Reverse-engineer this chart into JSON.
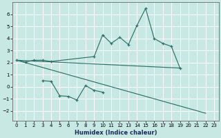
{
  "background_color": "#c8e8e4",
  "grid_color": "#ffffff",
  "line_color": "#2d7068",
  "x_label": "Humidex (Indice chaleur)",
  "ylim": [
    -2.8,
    7.0
  ],
  "xlim": [
    -0.5,
    23.5
  ],
  "yticks": [
    -2,
    -1,
    0,
    1,
    2,
    3,
    4,
    5,
    6
  ],
  "xticks": [
    0,
    1,
    2,
    3,
    4,
    5,
    6,
    7,
    8,
    9,
    10,
    11,
    12,
    13,
    14,
    15,
    16,
    17,
    18,
    19,
    20,
    21,
    22,
    23
  ],
  "upper_zigzag": {
    "x": [
      0,
      1,
      2,
      3,
      4,
      9,
      10,
      11,
      12,
      13,
      14,
      15,
      16,
      17,
      18,
      19
    ],
    "y": [
      2.2,
      2.05,
      2.2,
      2.2,
      2.1,
      2.5,
      4.3,
      3.6,
      4.1,
      3.5,
      5.1,
      6.5,
      4.0,
      3.6,
      3.35,
      1.55
    ]
  },
  "lower_zigzag": {
    "x": [
      3,
      4,
      5,
      6,
      7,
      8,
      9,
      10
    ],
    "y": [
      0.5,
      0.45,
      -0.75,
      -0.8,
      -1.1,
      0.1,
      -0.3,
      -0.45
    ]
  },
  "trend_upper": {
    "x": [
      0,
      19
    ],
    "y": [
      2.2,
      1.55
    ]
  },
  "trend_lower": {
    "x": [
      0,
      22
    ],
    "y": [
      2.2,
      -2.2
    ]
  }
}
